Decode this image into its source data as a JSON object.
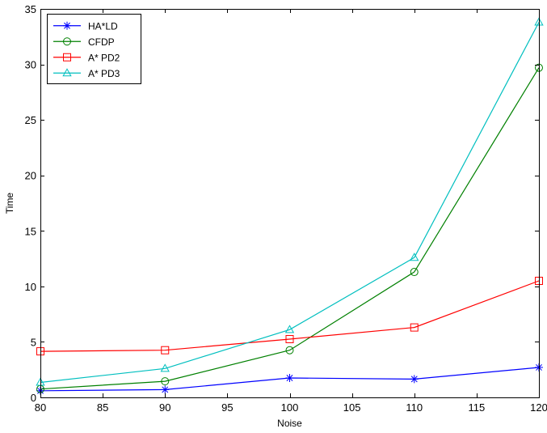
{
  "chart_data": {
    "type": "line",
    "title": "",
    "xlabel": "Noise",
    "ylabel": "Time",
    "xlim": [
      80,
      120
    ],
    "ylim": [
      0,
      35
    ],
    "xticks": [
      80,
      85,
      90,
      95,
      100,
      105,
      110,
      115,
      120
    ],
    "yticks": [
      0,
      5,
      10,
      15,
      20,
      25,
      30,
      35
    ],
    "grid": false,
    "legend_position": "top-left",
    "x": [
      80,
      90,
      100,
      110,
      120
    ],
    "series": [
      {
        "name": "HA*LD",
        "values": [
          0.6,
          0.7,
          1.75,
          1.65,
          2.7
        ],
        "color": "#0000ff",
        "marker": "asterisk"
      },
      {
        "name": "CFDP",
        "values": [
          0.75,
          1.45,
          4.25,
          11.3,
          29.7
        ],
        "color": "#008000",
        "marker": "circle"
      },
      {
        "name": "A* PD2",
        "values": [
          4.15,
          4.25,
          5.25,
          6.3,
          10.5
        ],
        "color": "#ff0000",
        "marker": "square"
      },
      {
        "name": "A* PD3",
        "values": [
          1.35,
          2.6,
          6.1,
          12.6,
          33.8
        ],
        "color": "#00bfbf",
        "marker": "triangle"
      }
    ]
  }
}
